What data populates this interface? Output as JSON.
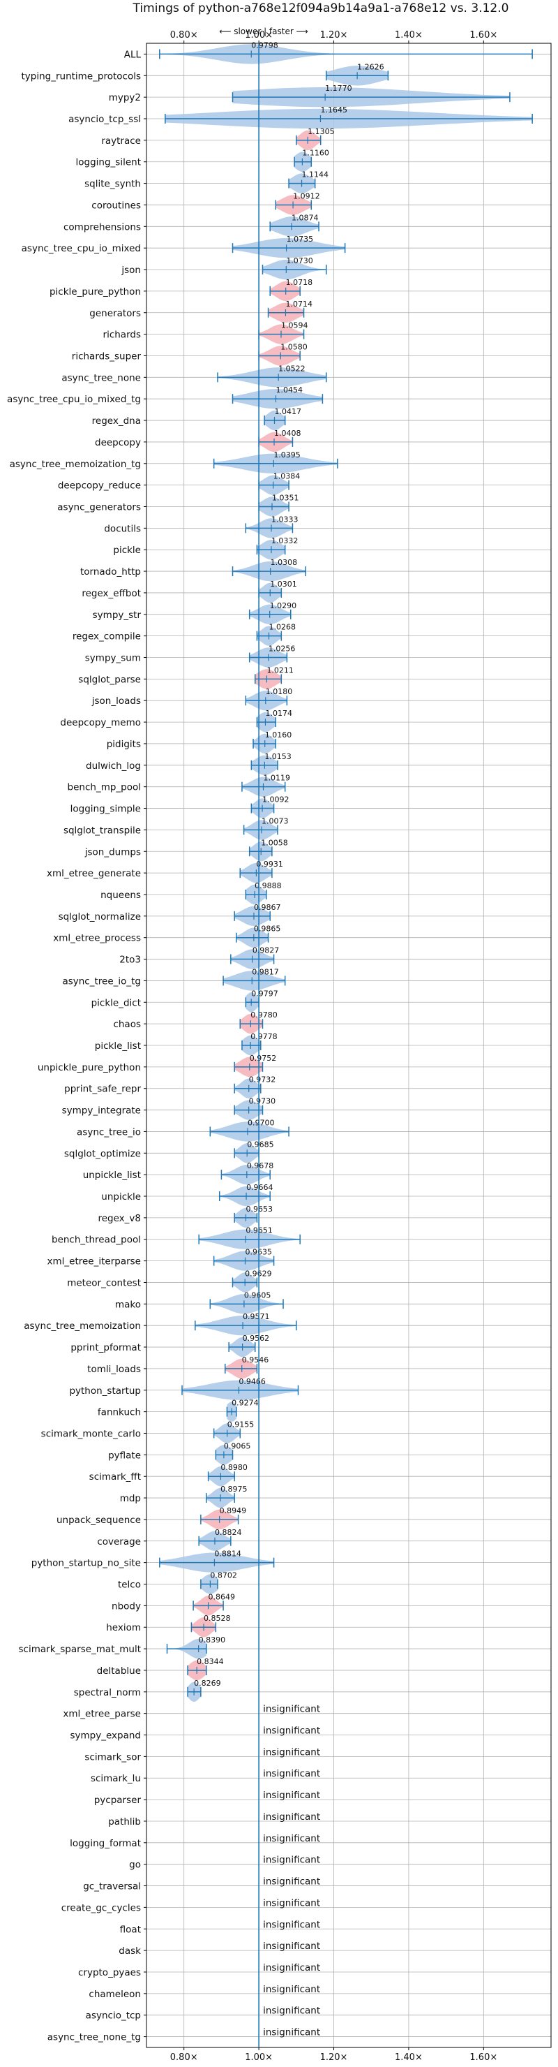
{
  "chart_data": {
    "type": "violin",
    "title": "Timings of python-a768e12f094a9b14a9a1-a768e12 vs. 3.12.0",
    "direction_label": "⟵ slower | faster ⟶",
    "xlim": [
      0.7,
      1.78
    ],
    "x_ticks": [
      0.8,
      1.0,
      1.2,
      1.4,
      1.6
    ],
    "x_tick_labels": [
      "0.80×",
      "1.00×",
      "1.20×",
      "1.40×",
      "1.60×"
    ],
    "reference_line": 1.0,
    "grid": true,
    "insignificant_label": "insignificant",
    "benchmarks": [
      {
        "name": "ALL",
        "median": 0.9798,
        "lo": 0.735,
        "hi": 1.73,
        "spread": 0.09,
        "highlight": false
      },
      {
        "name": "typing_runtime_protocols",
        "median": 1.2626,
        "lo": 1.18,
        "hi": 1.345,
        "spread": 0.06,
        "highlight": false
      },
      {
        "name": "mypy2",
        "median": 1.177,
        "lo": 0.93,
        "hi": 1.67,
        "spread": 0.25,
        "highlight": false
      },
      {
        "name": "asyncio_tcp_ssl",
        "median": 1.1645,
        "lo": 0.75,
        "hi": 1.73,
        "spread": 0.3,
        "highlight": false
      },
      {
        "name": "raytrace",
        "median": 1.1305,
        "lo": 1.1,
        "hi": 1.165,
        "spread": 0.02,
        "highlight": true
      },
      {
        "name": "logging_silent",
        "median": 1.116,
        "lo": 1.095,
        "hi": 1.14,
        "spread": 0.02,
        "highlight": false
      },
      {
        "name": "sqlite_synth",
        "median": 1.1144,
        "lo": 1.08,
        "hi": 1.15,
        "spread": 0.025,
        "highlight": false
      },
      {
        "name": "coroutines",
        "median": 1.0912,
        "lo": 1.045,
        "hi": 1.14,
        "spread": 0.03,
        "highlight": true
      },
      {
        "name": "comprehensions",
        "median": 1.0874,
        "lo": 1.03,
        "hi": 1.16,
        "spread": 0.04,
        "highlight": false
      },
      {
        "name": "async_tree_cpu_io_mixed",
        "median": 1.0735,
        "lo": 0.93,
        "hi": 1.23,
        "spread": 0.08,
        "highlight": false
      },
      {
        "name": "json",
        "median": 1.073,
        "lo": 1.01,
        "hi": 1.18,
        "spread": 0.04,
        "highlight": false
      },
      {
        "name": "pickle_pure_python",
        "median": 1.0718,
        "lo": 1.03,
        "hi": 1.11,
        "spread": 0.025,
        "highlight": true
      },
      {
        "name": "generators",
        "median": 1.0714,
        "lo": 1.025,
        "hi": 1.12,
        "spread": 0.03,
        "highlight": true
      },
      {
        "name": "richards",
        "median": 1.0594,
        "lo": 1.0,
        "hi": 1.12,
        "spread": 0.03,
        "highlight": true
      },
      {
        "name": "richards_super",
        "median": 1.058,
        "lo": 1.0,
        "hi": 1.11,
        "spread": 0.03,
        "highlight": true
      },
      {
        "name": "async_tree_none",
        "median": 1.0522,
        "lo": 0.89,
        "hi": 1.18,
        "spread": 0.07,
        "highlight": false
      },
      {
        "name": "async_tree_cpu_io_mixed_tg",
        "median": 1.0454,
        "lo": 0.93,
        "hi": 1.17,
        "spread": 0.07,
        "highlight": false
      },
      {
        "name": "regex_dna",
        "median": 1.0417,
        "lo": 1.015,
        "hi": 1.07,
        "spread": 0.02,
        "highlight": false
      },
      {
        "name": "deepcopy",
        "median": 1.0408,
        "lo": 1.0,
        "hi": 1.09,
        "spread": 0.025,
        "highlight": true
      },
      {
        "name": "async_tree_memoization_tg",
        "median": 1.0395,
        "lo": 0.88,
        "hi": 1.21,
        "spread": 0.08,
        "highlight": false
      },
      {
        "name": "deepcopy_reduce",
        "median": 1.0384,
        "lo": 1.0,
        "hi": 1.08,
        "spread": 0.025,
        "highlight": false
      },
      {
        "name": "async_generators",
        "median": 1.0351,
        "lo": 1.0,
        "hi": 1.08,
        "spread": 0.025,
        "highlight": false
      },
      {
        "name": "docutils",
        "median": 1.0333,
        "lo": 0.965,
        "hi": 1.09,
        "spread": 0.03,
        "highlight": false
      },
      {
        "name": "pickle",
        "median": 1.0332,
        "lo": 0.995,
        "hi": 1.07,
        "spread": 0.025,
        "highlight": false
      },
      {
        "name": "tornado_http",
        "median": 1.0308,
        "lo": 0.93,
        "hi": 1.125,
        "spread": 0.045,
        "highlight": false
      },
      {
        "name": "regex_effbot",
        "median": 1.0301,
        "lo": 1.0,
        "hi": 1.06,
        "spread": 0.02,
        "highlight": false
      },
      {
        "name": "sympy_str",
        "median": 1.029,
        "lo": 0.975,
        "hi": 1.085,
        "spread": 0.03,
        "highlight": false
      },
      {
        "name": "regex_compile",
        "median": 1.0268,
        "lo": 0.995,
        "hi": 1.06,
        "spread": 0.02,
        "highlight": false
      },
      {
        "name": "sympy_sum",
        "median": 1.0256,
        "lo": 0.975,
        "hi": 1.075,
        "spread": 0.03,
        "highlight": false
      },
      {
        "name": "sqlglot_parse",
        "median": 1.0211,
        "lo": 0.99,
        "hi": 1.06,
        "spread": 0.025,
        "highlight": true
      },
      {
        "name": "json_loads",
        "median": 1.018,
        "lo": 0.965,
        "hi": 1.075,
        "spread": 0.03,
        "highlight": false
      },
      {
        "name": "deepcopy_memo",
        "median": 1.0174,
        "lo": 0.995,
        "hi": 1.045,
        "spread": 0.02,
        "highlight": false
      },
      {
        "name": "pidigits",
        "median": 1.016,
        "lo": 0.985,
        "hi": 1.045,
        "spread": 0.02,
        "highlight": false
      },
      {
        "name": "dulwich_log",
        "median": 1.0153,
        "lo": 0.98,
        "hi": 1.05,
        "spread": 0.025,
        "highlight": false
      },
      {
        "name": "bench_mp_pool",
        "median": 1.0119,
        "lo": 0.955,
        "hi": 1.07,
        "spread": 0.03,
        "highlight": false
      },
      {
        "name": "logging_simple",
        "median": 1.0092,
        "lo": 0.98,
        "hi": 1.04,
        "spread": 0.02,
        "highlight": false
      },
      {
        "name": "sqlglot_transpile",
        "median": 1.0073,
        "lo": 0.96,
        "hi": 1.05,
        "spread": 0.025,
        "highlight": false
      },
      {
        "name": "json_dumps",
        "median": 1.0058,
        "lo": 0.975,
        "hi": 1.035,
        "spread": 0.02,
        "highlight": false
      },
      {
        "name": "xml_etree_generate",
        "median": 0.9931,
        "lo": 0.95,
        "hi": 1.035,
        "spread": 0.025,
        "highlight": false
      },
      {
        "name": "nqueens",
        "median": 0.9888,
        "lo": 0.965,
        "hi": 1.02,
        "spread": 0.02,
        "highlight": false
      },
      {
        "name": "sqlglot_normalize",
        "median": 0.9867,
        "lo": 0.935,
        "hi": 1.03,
        "spread": 0.03,
        "highlight": false
      },
      {
        "name": "xml_etree_process",
        "median": 0.9865,
        "lo": 0.94,
        "hi": 1.025,
        "spread": 0.025,
        "highlight": false
      },
      {
        "name": "2to3",
        "median": 0.9827,
        "lo": 0.925,
        "hi": 1.04,
        "spread": 0.03,
        "highlight": false
      },
      {
        "name": "async_tree_io_tg",
        "median": 0.9817,
        "lo": 0.905,
        "hi": 1.07,
        "spread": 0.045,
        "highlight": false
      },
      {
        "name": "pickle_dict",
        "median": 0.9797,
        "lo": 0.965,
        "hi": 1.0,
        "spread": 0.015,
        "highlight": false
      },
      {
        "name": "chaos",
        "median": 0.978,
        "lo": 0.95,
        "hi": 1.01,
        "spread": 0.02,
        "highlight": true
      },
      {
        "name": "pickle_list",
        "median": 0.9778,
        "lo": 0.955,
        "hi": 1.005,
        "spread": 0.02,
        "highlight": false
      },
      {
        "name": "unpickle_pure_python",
        "median": 0.9752,
        "lo": 0.935,
        "hi": 1.01,
        "spread": 0.025,
        "highlight": true
      },
      {
        "name": "pprint_safe_repr",
        "median": 0.9732,
        "lo": 0.935,
        "hi": 1.005,
        "spread": 0.02,
        "highlight": false
      },
      {
        "name": "sympy_integrate",
        "median": 0.973,
        "lo": 0.935,
        "hi": 1.01,
        "spread": 0.025,
        "highlight": false
      },
      {
        "name": "async_tree_io",
        "median": 0.97,
        "lo": 0.87,
        "hi": 1.08,
        "spread": 0.05,
        "highlight": false
      },
      {
        "name": "sqlglot_optimize",
        "median": 0.9685,
        "lo": 0.935,
        "hi": 1.0,
        "spread": 0.02,
        "highlight": false
      },
      {
        "name": "unpickle_list",
        "median": 0.9678,
        "lo": 0.9,
        "hi": 1.03,
        "spread": 0.03,
        "highlight": false
      },
      {
        "name": "unpickle",
        "median": 0.9664,
        "lo": 0.895,
        "hi": 1.03,
        "spread": 0.03,
        "highlight": false
      },
      {
        "name": "regex_v8",
        "median": 0.9653,
        "lo": 0.935,
        "hi": 0.995,
        "spread": 0.02,
        "highlight": false
      },
      {
        "name": "bench_thread_pool",
        "median": 0.9651,
        "lo": 0.84,
        "hi": 1.11,
        "spread": 0.06,
        "highlight": false
      },
      {
        "name": "xml_etree_iterparse",
        "median": 0.9635,
        "lo": 0.88,
        "hi": 1.04,
        "spread": 0.04,
        "highlight": false
      },
      {
        "name": "meteor_contest",
        "median": 0.9629,
        "lo": 0.93,
        "hi": 0.995,
        "spread": 0.02,
        "highlight": false
      },
      {
        "name": "mako",
        "median": 0.9605,
        "lo": 0.87,
        "hi": 1.065,
        "spread": 0.04,
        "highlight": false
      },
      {
        "name": "async_tree_memoization",
        "median": 0.9571,
        "lo": 0.83,
        "hi": 1.1,
        "spread": 0.06,
        "highlight": false
      },
      {
        "name": "pprint_pformat",
        "median": 0.9562,
        "lo": 0.92,
        "hi": 0.99,
        "spread": 0.02,
        "highlight": false
      },
      {
        "name": "tomli_loads",
        "median": 0.9546,
        "lo": 0.91,
        "hi": 0.995,
        "spread": 0.025,
        "highlight": true
      },
      {
        "name": "python_startup",
        "median": 0.9466,
        "lo": 0.795,
        "hi": 1.105,
        "spread": 0.08,
        "highlight": false
      },
      {
        "name": "fannkuch",
        "median": 0.9274,
        "lo": 0.915,
        "hi": 0.94,
        "spread": 0.015,
        "highlight": false
      },
      {
        "name": "scimark_monte_carlo",
        "median": 0.9155,
        "lo": 0.88,
        "hi": 0.95,
        "spread": 0.02,
        "highlight": false
      },
      {
        "name": "pyflate",
        "median": 0.9065,
        "lo": 0.885,
        "hi": 0.93,
        "spread": 0.02,
        "highlight": false
      },
      {
        "name": "scimark_fft",
        "median": 0.898,
        "lo": 0.865,
        "hi": 0.935,
        "spread": 0.02,
        "highlight": false
      },
      {
        "name": "mdp",
        "median": 0.8975,
        "lo": 0.86,
        "hi": 0.935,
        "spread": 0.02,
        "highlight": false
      },
      {
        "name": "unpack_sequence",
        "median": 0.8949,
        "lo": 0.845,
        "hi": 0.945,
        "spread": 0.025,
        "highlight": true
      },
      {
        "name": "coverage",
        "median": 0.8824,
        "lo": 0.84,
        "hi": 0.925,
        "spread": 0.025,
        "highlight": false
      },
      {
        "name": "python_startup_no_site",
        "median": 0.8814,
        "lo": 0.735,
        "hi": 1.04,
        "spread": 0.08,
        "highlight": false
      },
      {
        "name": "telco",
        "median": 0.8702,
        "lo": 0.845,
        "hi": 0.89,
        "spread": 0.02,
        "highlight": false
      },
      {
        "name": "nbody",
        "median": 0.8649,
        "lo": 0.825,
        "hi": 0.905,
        "spread": 0.02,
        "highlight": true
      },
      {
        "name": "hexiom",
        "median": 0.8528,
        "lo": 0.82,
        "hi": 0.885,
        "spread": 0.02,
        "highlight": true
      },
      {
        "name": "scimark_sparse_mat_mult",
        "median": 0.839,
        "lo": 0.755,
        "hi": 0.86,
        "spread": 0.025,
        "highlight": false
      },
      {
        "name": "deltablue",
        "median": 0.8344,
        "lo": 0.81,
        "hi": 0.86,
        "spread": 0.02,
        "highlight": true
      },
      {
        "name": "spectral_norm",
        "median": 0.8269,
        "lo": 0.81,
        "hi": 0.845,
        "spread": 0.015,
        "highlight": false
      },
      {
        "name": "xml_etree_parse",
        "insignificant": true
      },
      {
        "name": "sympy_expand",
        "insignificant": true
      },
      {
        "name": "scimark_sor",
        "insignificant": true
      },
      {
        "name": "scimark_lu",
        "insignificant": true
      },
      {
        "name": "pycparser",
        "insignificant": true
      },
      {
        "name": "pathlib",
        "insignificant": true
      },
      {
        "name": "logging_format",
        "insignificant": true
      },
      {
        "name": "go",
        "insignificant": true
      },
      {
        "name": "gc_traversal",
        "insignificant": true
      },
      {
        "name": "create_gc_cycles",
        "insignificant": true
      },
      {
        "name": "float",
        "insignificant": true
      },
      {
        "name": "dask",
        "insignificant": true
      },
      {
        "name": "crypto_pyaes",
        "insignificant": true
      },
      {
        "name": "chameleon",
        "insignificant": true
      },
      {
        "name": "asyncio_tcp",
        "insignificant": true
      },
      {
        "name": "async_tree_none_tg",
        "insignificant": true
      }
    ],
    "colors": {
      "violin": "#a9c7e6",
      "highlight": "#f4b0b6",
      "line": "#1f77b4",
      "grid": "#b0b0b0"
    }
  }
}
